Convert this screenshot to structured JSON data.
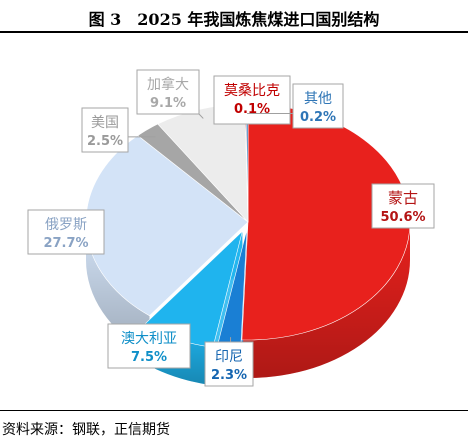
{
  "title": "图 3　2025 年我国炼焦煤进口国别结构",
  "source": "资料来源：钢联，正信期货",
  "chart_data": {
    "type": "pie",
    "title": "图 3　2025 年我国炼焦煤进口国别结构",
    "slices": [
      {
        "name": "蒙古",
        "value": 50.6,
        "label": "50.6%",
        "color": "#e8211d",
        "text_color": "#b41414"
      },
      {
        "name": "印尼",
        "value": 2.3,
        "label": "2.3%",
        "color": "#1a7fd4",
        "text_color": "#1565b0"
      },
      {
        "name": "澳大利亚",
        "value": 7.5,
        "label": "7.5%",
        "color": "#1fb4ee",
        "text_color": "#0f8fc8"
      },
      {
        "name": "俄罗斯",
        "value": 27.7,
        "label": "27.7%",
        "color": "#d3e3f7",
        "text_color": "#8aa3c4"
      },
      {
        "name": "美国",
        "value": 2.5,
        "label": "2.5%",
        "color": "#a6a6a6",
        "text_color": "#9a9a9a"
      },
      {
        "name": "加拿大",
        "value": 9.1,
        "label": "9.1%",
        "color": "#ececec",
        "text_color": "#a8a8a8"
      },
      {
        "name": "莫桑比克",
        "value": 0.1,
        "label": "0.1%",
        "color": "#c00000",
        "text_color": "#c00000"
      },
      {
        "name": "其他",
        "value": 0.2,
        "label": "0.2%",
        "color": "#2e75b6",
        "text_color": "#2e75b6"
      }
    ]
  }
}
